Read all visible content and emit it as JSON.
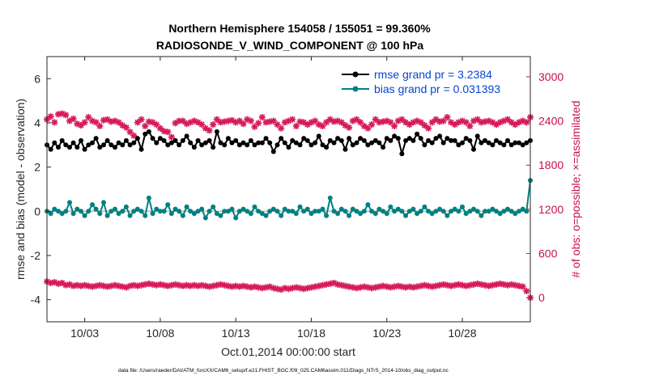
{
  "chart_data": {
    "type": "line",
    "title_line1": "Northern Hemisphere 154058 / 155051 = 99.360%",
    "title_line2": "RADIOSONDE_V_WIND_COMPONENT @ 100 hPa",
    "ylabel_left": "rmse and bias (model - observation)",
    "ylabel_right": "# of obs: o=possible; ×=assimilated",
    "xlabel": "Oct.01,2014 00:00:00 start",
    "footnote": "data file: /Users/raeder/DAI/ATM_forcXX/CAM6_setup/f.e21.FHIST_BGC.f09_025.CAM6assim.011/Diags_NTrS_2014-10/obs_diag_output.nc",
    "x_tick_labels": [
      "10/03",
      "10/08",
      "10/13",
      "10/18",
      "10/23",
      "10/28"
    ],
    "x_tick_days": [
      3,
      8,
      13,
      18,
      23,
      28
    ],
    "xlim_days": [
      0.5,
      32.5
    ],
    "y_left_ticks": [
      "-4",
      "-2",
      "0",
      "2",
      "4",
      "6"
    ],
    "y_left_lim": [
      -5,
      7
    ],
    "y_right_ticks": [
      "0",
      "600",
      "1200",
      "1800",
      "2400",
      "3000"
    ],
    "y_right_lim": [
      -327,
      3273
    ],
    "colors": {
      "rmse": "#000000",
      "bias": "#008080",
      "obs": "#d61a5a",
      "zero_line": "#bbbbbb"
    },
    "legend": {
      "position": "top-right",
      "entries": [
        {
          "label": "rmse grand pr = 3.2384",
          "series": "rmse"
        },
        {
          "label": "bias grand pr = 0.031393",
          "series": "bias"
        }
      ]
    },
    "x_start_day": 0.5,
    "x_step_days": 0.25,
    "series": [
      {
        "name": "rmse",
        "axis": "left",
        "values": [
          3.0,
          2.8,
          3.1,
          2.9,
          3.2,
          3.0,
          2.9,
          3.1,
          2.9,
          3.2,
          2.8,
          3.0,
          3.1,
          3.3,
          2.9,
          3.0,
          3.2,
          3.0,
          2.9,
          3.1,
          3.0,
          3.2,
          3.0,
          3.1,
          3.3,
          2.8,
          3.5,
          3.6,
          3.3,
          3.1,
          3.3,
          3.2,
          3.0,
          3.1,
          3.2,
          3.0,
          3.2,
          3.4,
          3.1,
          2.9,
          3.2,
          3.0,
          3.1,
          3.2,
          2.9,
          3.6,
          3.1,
          3.0,
          3.3,
          3.1,
          3.2,
          3.0,
          3.1,
          3.0,
          3.2,
          3.0,
          3.1,
          3.1,
          3.3,
          3.1,
          2.7,
          3.0,
          3.3,
          3.1,
          2.9,
          3.2,
          3.1,
          3.0,
          3.3,
          3.2,
          3.0,
          3.1,
          3.4,
          3.0,
          2.9,
          3.2,
          3.1,
          3.3,
          3.2,
          2.8,
          3.3,
          3.0,
          3.1,
          3.3,
          3.2,
          3.0,
          3.1,
          3.2,
          3.1,
          2.9,
          3.3,
          3.2,
          3.4,
          3.3,
          2.6,
          3.2,
          3.3,
          3.2,
          3.5,
          3.3,
          3.0,
          3.2,
          3.1,
          3.3,
          3.4,
          3.1,
          3.3,
          3.2,
          3.2,
          3.0,
          3.1,
          3.3,
          3.2,
          2.8,
          3.4,
          3.1,
          3.2,
          3.1,
          3.0,
          3.2,
          3.1,
          3.0,
          3.2,
          3.0,
          3.1,
          3.1,
          3.0,
          3.1,
          3.2
        ],
        "note": "representative"
      },
      {
        "name": "bias",
        "axis": "left",
        "values": [
          0.0,
          -0.1,
          0.1,
          0.0,
          -0.1,
          0.0,
          0.4,
          -0.1,
          0.1,
          0.0,
          -0.2,
          0.0,
          0.3,
          0.1,
          -0.1,
          0.4,
          -0.2,
          0.0,
          0.1,
          -0.1,
          0.0,
          0.2,
          -0.2,
          0.0,
          0.1,
          0.0,
          -0.2,
          0.6,
          -0.1,
          0.1,
          0.0,
          0.0,
          0.3,
          -0.1,
          0.1,
          0.0,
          -0.2,
          0.2,
          0.0,
          -0.1,
          0.0,
          0.1,
          -0.3,
          0.0,
          0.2,
          -0.1,
          -0.2,
          0.0,
          0.0,
          0.1,
          -0.3,
          0.0,
          0.1,
          0.0,
          -0.1,
          0.2,
          0.0,
          -0.1,
          -0.2,
          0.0,
          0.1,
          0.0,
          -0.2,
          0.1,
          0.0,
          0.0,
          -0.1,
          0.2,
          0.0,
          0.1,
          -0.1,
          0.0,
          0.0,
          0.1,
          -0.2,
          0.6,
          0.0,
          -0.1,
          0.1,
          0.0,
          -0.2,
          0.1,
          0.0,
          -0.1,
          0.0,
          0.3,
          0.0,
          -0.1,
          0.1,
          0.0,
          -0.1,
          0.2,
          0.0,
          0.1,
          0.0,
          -0.2,
          0.0,
          0.1,
          -0.1,
          0.0,
          0.2,
          0.0,
          -0.1,
          0.0,
          0.1,
          0.0,
          -0.2,
          0.0,
          0.1,
          0.0,
          0.2,
          -0.1,
          0.0,
          0.1,
          0.0,
          -0.2,
          0.0,
          0.0,
          0.1,
          0.0,
          -0.1,
          0.0,
          0.1,
          0.0,
          -0.1,
          0.0,
          0.1,
          0.0,
          1.4
        ],
        "note": "representative"
      },
      {
        "name": "possible_obs",
        "axis": "right",
        "values": [
          2420,
          2460,
          2380,
          2490,
          2500,
          2480,
          2400,
          2430,
          2360,
          2340,
          2380,
          2450,
          2400,
          2380,
          2330,
          2410,
          2420,
          2390,
          2400,
          2380,
          2340,
          2310,
          2250,
          2200,
          2380,
          2420,
          2330,
          2390,
          2380,
          2350,
          2300,
          2260,
          2250,
          2180,
          2370,
          2400,
          2400,
          2360,
          2380,
          2400,
          2380,
          2350,
          2300,
          2270,
          2350,
          2420,
          2380,
          2390,
          2400,
          2410,
          2380,
          2400,
          2360,
          2420,
          2400,
          2320,
          2370,
          2450,
          2380,
          2390,
          2400,
          2350,
          2300,
          2380,
          2400,
          2420,
          2330,
          2390,
          2380,
          2350,
          2380,
          2400,
          2350,
          2330,
          2380,
          2420,
          2390,
          2400,
          2380,
          2340,
          2310,
          2400,
          2420,
          2380,
          2330,
          2300,
          2350,
          2420,
          2380,
          2390,
          2400,
          2380,
          2330,
          2400,
          2420,
          2380,
          2350,
          2380,
          2400,
          2380,
          2340,
          2300,
          2380,
          2420,
          2390,
          2400,
          2450,
          2380,
          2350,
          2380,
          2400,
          2380,
          2330,
          2400,
          2420,
          2380,
          2390,
          2400,
          2380,
          2350,
          2380,
          2400,
          2420,
          2380,
          2350,
          2380,
          2400,
          2380,
          2450
        ],
        "note": "representative"
      },
      {
        "name": "assimilated_obs",
        "axis": "right",
        "values": [
          220,
          200,
          210,
          190,
          200,
          170,
          180,
          160,
          170,
          160,
          170,
          160,
          150,
          160,
          170,
          160,
          150,
          160,
          170,
          160,
          150,
          140,
          160,
          170,
          160,
          170,
          180,
          190,
          180,
          170,
          180,
          170,
          160,
          170,
          180,
          170,
          160,
          170,
          160,
          170,
          160,
          170,
          160,
          150,
          160,
          170,
          180,
          170,
          160,
          150,
          160,
          150,
          160,
          150,
          140,
          150,
          140,
          130,
          140,
          150,
          130,
          120,
          110,
          130,
          120,
          130,
          140,
          130,
          120,
          130,
          140,
          150,
          160,
          170,
          180,
          190,
          200,
          180,
          170,
          160,
          150,
          140,
          130,
          140,
          150,
          140,
          130,
          140,
          150,
          160,
          150,
          140,
          150,
          160,
          150,
          140,
          150,
          140,
          150,
          160,
          170,
          160,
          150,
          160,
          170,
          180,
          170,
          160,
          170,
          180,
          170,
          160,
          170,
          180,
          190,
          180,
          170,
          160,
          170,
          180,
          190,
          180,
          170,
          180,
          170,
          160,
          150,
          90,
          0
        ],
        "note": "representative"
      }
    ]
  }
}
